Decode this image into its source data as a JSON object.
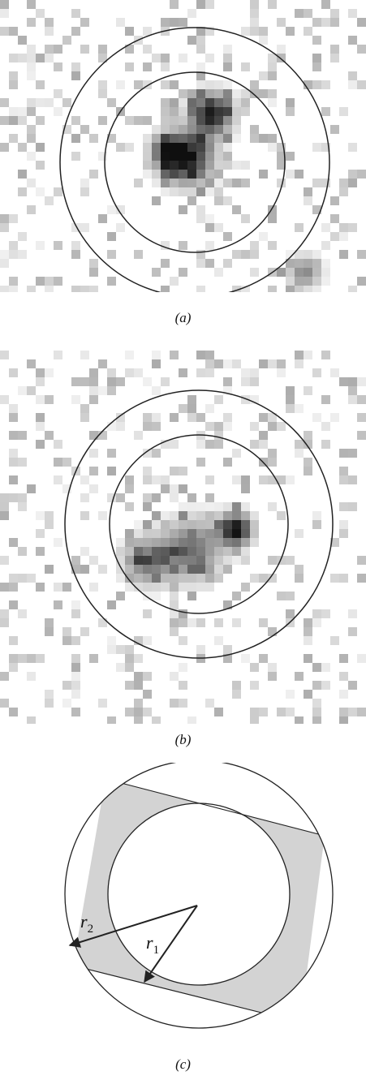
{
  "figure": {
    "panels": [
      {
        "id": "a",
        "caption": "(a)",
        "image": "pixelated grayscale intensity map with inner and outer concentric circle apertures"
      },
      {
        "id": "b",
        "caption": "(b)",
        "image": "pixelated grayscale intensity map with inner and outer concentric circle apertures"
      },
      {
        "id": "c",
        "caption": "(c)",
        "labels": {
          "r2": "r",
          "r2_sub": "2",
          "r1": "r",
          "r1_sub": "1"
        }
      }
    ]
  },
  "colors": {
    "shade": "#d3d3d3",
    "line": "#222222",
    "background": "#ffffff"
  }
}
